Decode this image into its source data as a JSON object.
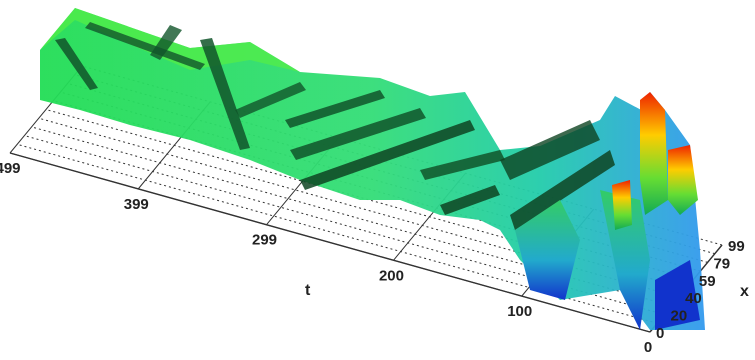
{
  "chart_data": {
    "type": "surface3d",
    "title": "",
    "axes": {
      "t": {
        "label": "t",
        "range": [
          0,
          499
        ],
        "ticks": [
          {
            "value": 499,
            "label": "499"
          },
          {
            "value": 399,
            "label": "399"
          },
          {
            "value": 299,
            "label": "299"
          },
          {
            "value": 200,
            "label": "200"
          },
          {
            "value": 100,
            "label": "100"
          },
          {
            "value": 0,
            "label": "0"
          }
        ]
      },
      "x": {
        "label": "x",
        "range": [
          0,
          99
        ],
        "ticks": [
          {
            "value": 0,
            "label": "0"
          },
          {
            "value": 20,
            "label": "20"
          },
          {
            "value": 40,
            "label": "40"
          },
          {
            "value": 59,
            "label": "59"
          },
          {
            "value": 79,
            "label": "79"
          },
          {
            "value": 99,
            "label": "99"
          }
        ]
      }
    },
    "grid": true,
    "colormap": [
      "#0000cc",
      "#00bbcc",
      "#00dd66",
      "#ffee00",
      "#ff3300"
    ]
  }
}
